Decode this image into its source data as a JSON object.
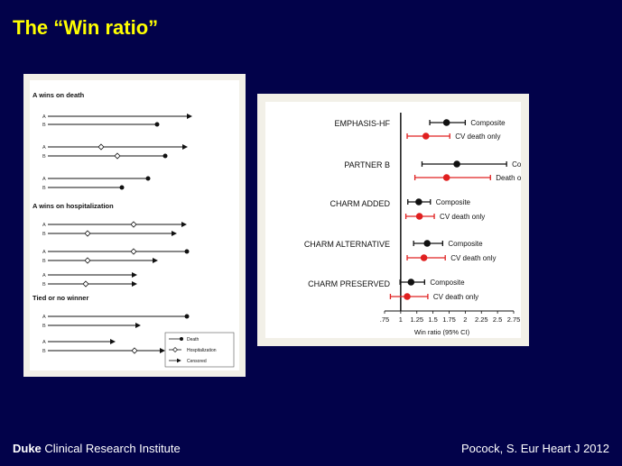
{
  "slide": {
    "title": "The “Win ratio”",
    "footer_org_bold": "Duke",
    "footer_org_rest": " Clinical Research Institute",
    "footer_citation": "Pocock, S. Eur Heart J 2012"
  },
  "left_figure": {
    "sections": [
      {
        "title": "A wins on death"
      },
      {
        "title": "A wins on hospitalization"
      },
      {
        "title": "Tied or no winner"
      }
    ],
    "row_label_a": "A",
    "row_label_b": "B",
    "legend": {
      "death": "Death",
      "hospitalization": "Hospitalization",
      "censored": "Censored"
    }
  },
  "chart_data": {
    "type": "scatter",
    "title": "",
    "xlabel": "Win ratio (95% CI)",
    "xlim": [
      0.75,
      2.75
    ],
    "xticks": [
      0.75,
      1,
      1.25,
      1.5,
      1.75,
      2,
      2.25,
      2.5,
      2.75
    ],
    "xtick_labels": [
      ".75",
      "1",
      "1.25",
      "1.5",
      "1.75",
      "2",
      "2.25",
      "2.5",
      "2.75"
    ],
    "series_colors": {
      "black": "#111111",
      "red": "#e02020"
    },
    "trials": [
      {
        "name": "EMPHASIS-HF",
        "rows": [
          {
            "label": "Composite",
            "color": "black",
            "estimate": 1.71,
            "lower": 1.45,
            "upper": 2.0
          },
          {
            "label": "CV death only",
            "color": "red",
            "estimate": 1.39,
            "lower": 1.1,
            "upper": 1.76
          }
        ]
      },
      {
        "name": "PARTNER B",
        "rows": [
          {
            "label": "Composite",
            "color": "black",
            "estimate": 1.87,
            "lower": 1.33,
            "upper": 2.64
          },
          {
            "label": "Death only",
            "color": "red",
            "estimate": 1.71,
            "lower": 1.22,
            "upper": 2.39
          }
        ]
      },
      {
        "name": "CHARM ADDED",
        "rows": [
          {
            "label": "Composite",
            "color": "black",
            "estimate": 1.28,
            "lower": 1.11,
            "upper": 1.46
          },
          {
            "label": "CV death only",
            "color": "red",
            "estimate": 1.29,
            "lower": 1.08,
            "upper": 1.52
          }
        ]
      },
      {
        "name": "CHARM ALTERNATIVE",
        "rows": [
          {
            "label": "Composite",
            "color": "black",
            "estimate": 1.41,
            "lower": 1.2,
            "upper": 1.65
          }
        ]
      },
      {
        "name": "",
        "rows": [
          {
            "label": "CV death only",
            "color": "red",
            "estimate": 1.36,
            "lower": 1.1,
            "upper": 1.69
          }
        ]
      },
      {
        "name": "CHARM PRESERVED",
        "rows": [
          {
            "label": "Composite",
            "color": "black",
            "estimate": 1.16,
            "lower": 0.99,
            "upper": 1.37
          },
          {
            "label": "CV death only",
            "color": "red",
            "estimate": 1.1,
            "lower": 0.84,
            "upper": 1.42
          }
        ]
      }
    ]
  }
}
